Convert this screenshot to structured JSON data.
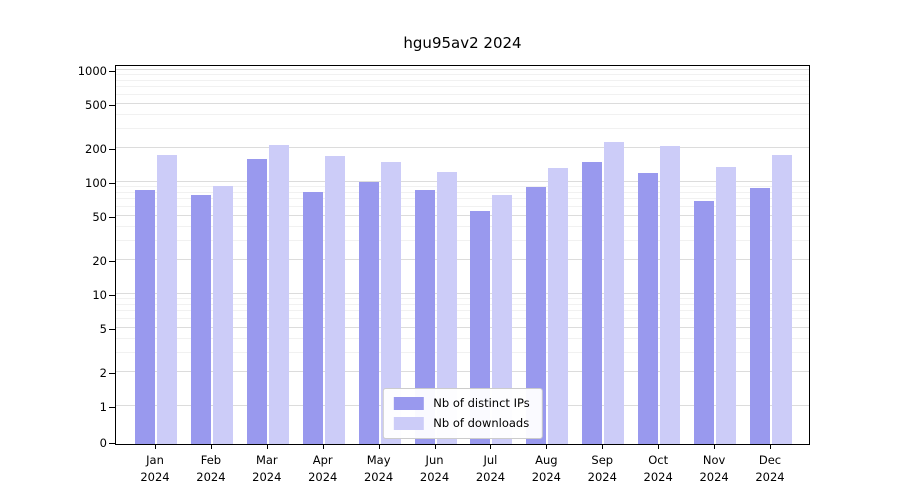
{
  "chart_data": {
    "type": "bar",
    "title": "hgu95av2 2024",
    "scale": "log",
    "grid": "horizontal major and minor gridlines",
    "legend_position": "lower center inside plot",
    "axes": {
      "yticks": [
        0,
        1,
        2,
        5,
        10,
        20,
        50,
        100,
        200,
        500,
        1000
      ],
      "ylim": [
        0,
        1200
      ],
      "months": [
        "Jan",
        "Feb",
        "Mar",
        "Apr",
        "May",
        "Jun",
        "Jul",
        "Aug",
        "Sep",
        "Oct",
        "Nov",
        "Dec"
      ],
      "year": "2024"
    },
    "categories": [
      "Jan 2024",
      "Feb 2024",
      "Mar 2024",
      "Apr 2024",
      "May 2024",
      "Jun 2024",
      "Jul 2024",
      "Aug 2024",
      "Sep 2024",
      "Oct 2024",
      "Nov 2024",
      "Dec 2024"
    ],
    "series": [
      {
        "key": "distinct-ips",
        "name": "Nb of distinct IPs",
        "color": "#9999ee",
        "values": [
          85,
          76,
          160,
          82,
          101,
          85,
          55,
          91,
          152,
          121,
          67,
          88
        ]
      },
      {
        "key": "downloads",
        "name": "Nb of downloads",
        "color": "#ccccf8",
        "values": [
          175,
          93,
          215,
          170,
          152,
          123,
          76,
          133,
          228,
          210,
          137,
          174
        ]
      }
    ]
  }
}
